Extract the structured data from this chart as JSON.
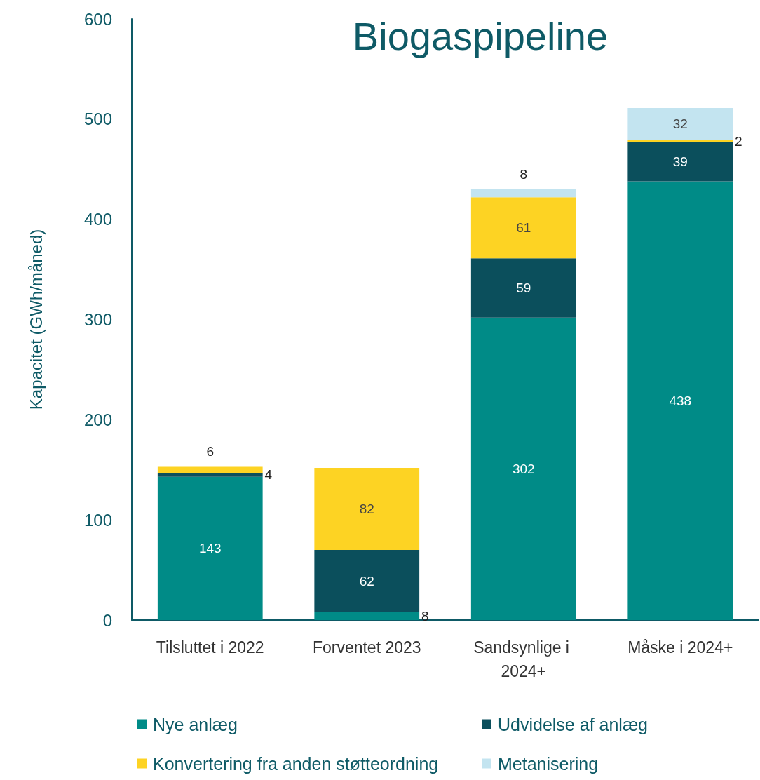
{
  "chart_data": {
    "type": "bar",
    "title": "Biogaspipeline",
    "ylabel": "Kapacitet (GWh/måned)",
    "categories": [
      "Tilsluttet i 2022",
      "Forventet 2023",
      "Sandsynlige i 2024+",
      "Måske i 2024+"
    ],
    "stacked": true,
    "series": [
      {
        "name": "Nye anlæg",
        "color": "#008b87",
        "values": [
          143,
          8,
          302,
          438
        ]
      },
      {
        "name": "Udvidelse af anlæg",
        "color": "#0b4f5c",
        "values": [
          4,
          62,
          59,
          39
        ]
      },
      {
        "name": "Konvertering fra anden støtteordning",
        "color": "#fdd323",
        "values": [
          6,
          82,
          61,
          2
        ]
      },
      {
        "name": "Metanisering",
        "color": "#c3e4f0",
        "values": [
          null,
          null,
          8,
          32
        ]
      }
    ],
    "ylim": [
      0,
      600
    ],
    "yticks": [
      0,
      100,
      200,
      300,
      400,
      500,
      600
    ],
    "grid": false,
    "data_labels": true,
    "legend": "bottom"
  }
}
